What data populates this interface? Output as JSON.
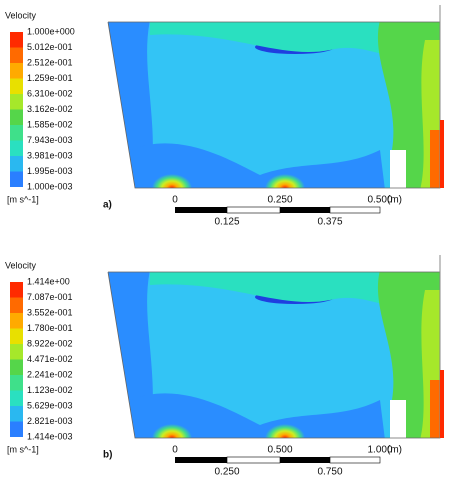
{
  "panels": [
    {
      "label": "a)",
      "legend": {
        "title": "Velocity",
        "labels": [
          "1.000e+000",
          "5.012e-001",
          "2.512e-001",
          "1.259e-001",
          "6.310e-002",
          "3.162e-002",
          "1.585e-002",
          "7.943e-003",
          "3.981e-003",
          "1.995e-003",
          "1.000e-003"
        ],
        "unit": "[m s^-1]"
      },
      "scale": {
        "top": [
          "0",
          "0.250",
          "0.500"
        ],
        "bottom": [
          "0.125",
          "0.375"
        ],
        "unit": "(m)"
      }
    },
    {
      "label": "b)",
      "legend": {
        "title": "Velocity",
        "labels": [
          "1.414e+00",
          "7.087e-001",
          "3.552e-001",
          "1.780e-001",
          "8.922e-002",
          "4.471e-002",
          "2.241e-002",
          "1.123e-002",
          "5.629e-003",
          "2.821e-003",
          "1.414e-003"
        ],
        "unit": "[m s^-1]"
      },
      "scale": {
        "top": [
          "0",
          "0.500",
          "1.000"
        ],
        "bottom": [
          "0.250",
          "0.750"
        ],
        "unit": "(m)"
      }
    }
  ]
}
